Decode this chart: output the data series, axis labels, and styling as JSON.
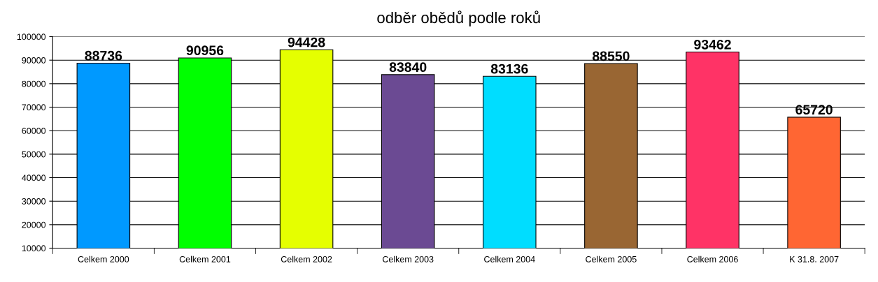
{
  "chart_data": {
    "type": "bar",
    "title": "odběr obědů podle roků",
    "categories": [
      "Celkem 2000",
      "Celkem 2001",
      "Celkem 2002",
      "Celkem 2003",
      "Celkem 2004",
      "Celkem 2005",
      "Celkem 2006",
      "K 31.8. 2007"
    ],
    "values": [
      88736,
      90956,
      94428,
      83840,
      83136,
      88550,
      93462,
      65720
    ],
    "colors": [
      "#0099ff",
      "#00ff00",
      "#e5ff00",
      "#6b4a93",
      "#00ddff",
      "#996633",
      "#ff3366",
      "#ff6633"
    ],
    "ylim": [
      10000,
      100000
    ],
    "yticks": [
      10000,
      20000,
      30000,
      40000,
      50000,
      60000,
      70000,
      80000,
      90000,
      100000
    ],
    "grid": "y",
    "data_labels": true,
    "legend": false
  }
}
